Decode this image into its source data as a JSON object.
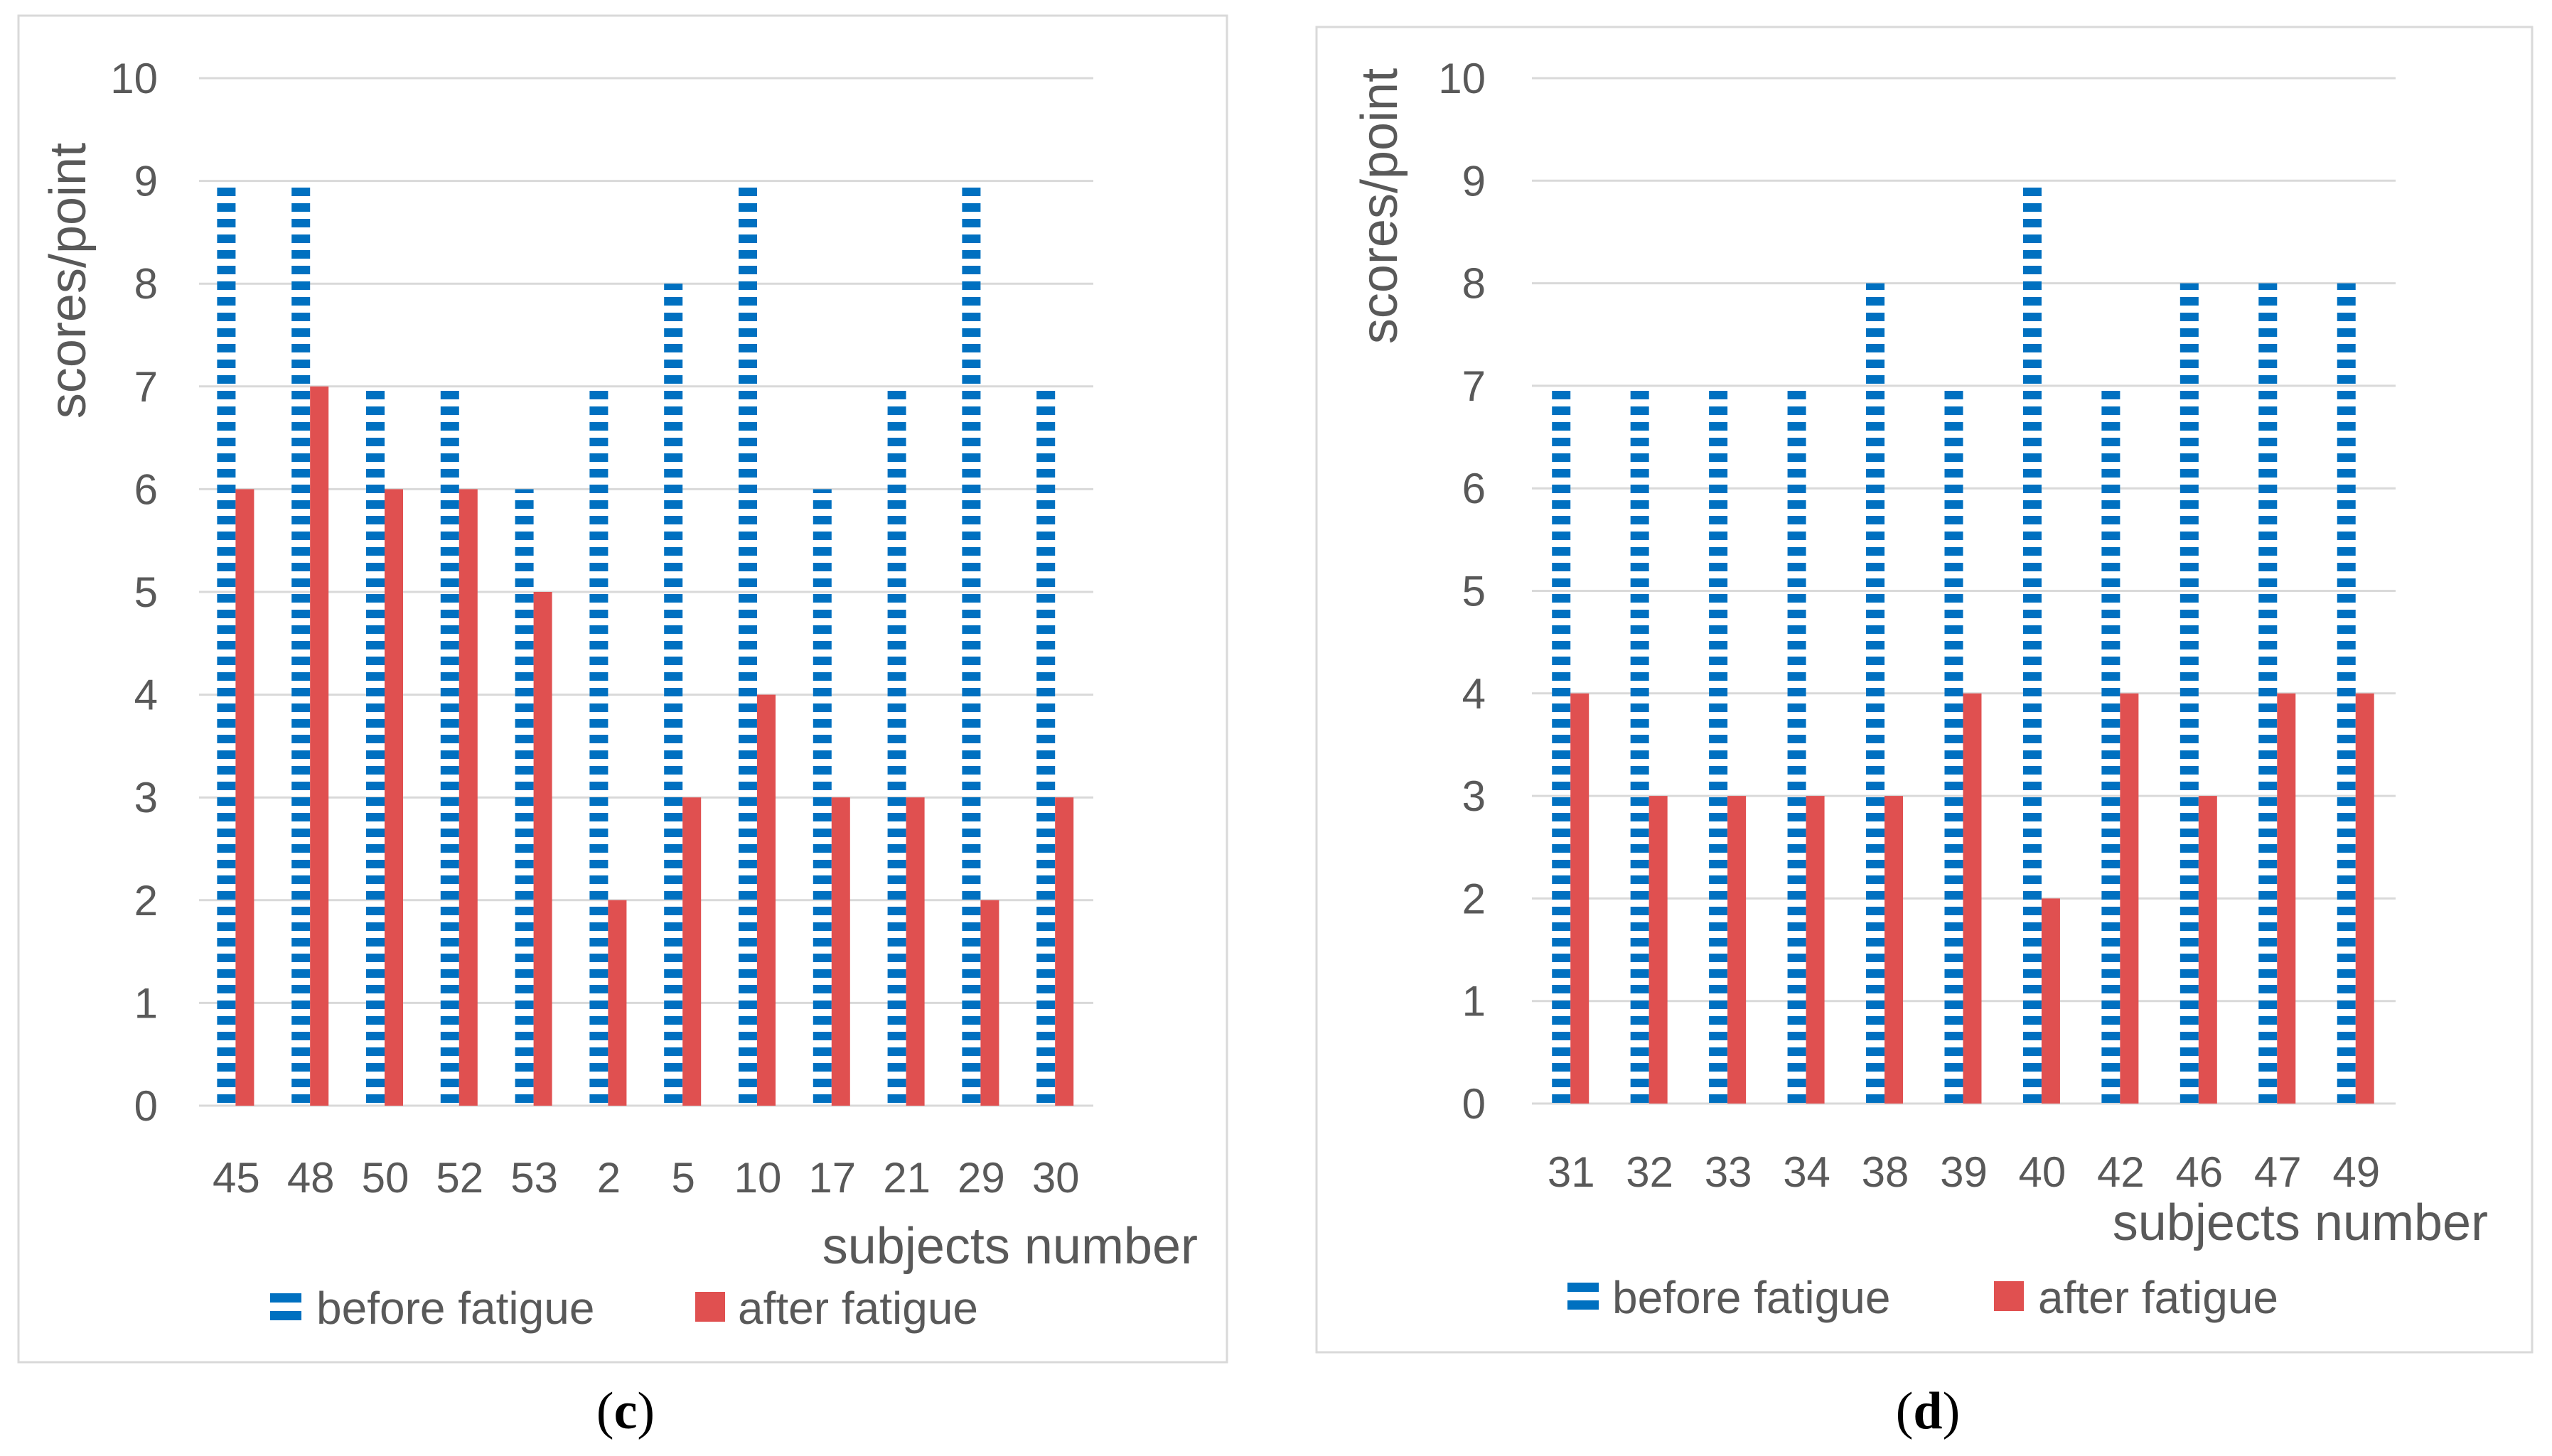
{
  "colors": {
    "before": "#0070c0",
    "after": "#e05050",
    "text": "#595959",
    "grid": "#d9d9d9"
  },
  "chart_data": [
    {
      "type": "bar",
      "panel": "c",
      "caption_open": "(",
      "caption_letter": "c",
      "caption_close": ")",
      "ylabel": "scores/point",
      "xlabel": "subjects number",
      "ylim": [
        0,
        10
      ],
      "yticks": [
        "0",
        "1",
        "2",
        "3",
        "4",
        "5",
        "6",
        "7",
        "8",
        "9",
        "10"
      ],
      "categories": [
        "45",
        "48",
        "50",
        "52",
        "53",
        "2",
        "5",
        "10",
        "17",
        "21",
        "29",
        "30"
      ],
      "legend_position": "bottom",
      "series": [
        {
          "name": "before fatigue",
          "pattern": "dashed",
          "values": [
            9,
            9,
            7,
            7,
            6,
            7,
            8,
            9,
            6,
            7,
            9,
            7
          ]
        },
        {
          "name": "after fatigue",
          "pattern": "solid",
          "values": [
            6,
            7,
            6,
            6,
            5,
            2,
            3,
            4,
            3,
            3,
            2,
            3
          ]
        }
      ]
    },
    {
      "type": "bar",
      "panel": "d",
      "caption_open": "(",
      "caption_letter": "d",
      "caption_close": ")",
      "ylabel": "scores/point",
      "xlabel": "subjects number",
      "ylim": [
        0,
        10
      ],
      "yticks": [
        "0",
        "1",
        "2",
        "3",
        "4",
        "5",
        "6",
        "7",
        "8",
        "9",
        "10"
      ],
      "categories": [
        "31",
        "32",
        "33",
        "34",
        "38",
        "39",
        "40",
        "42",
        "46",
        "47",
        "49"
      ],
      "legend_position": "bottom",
      "series": [
        {
          "name": "before fatigue",
          "pattern": "dashed",
          "values": [
            7,
            7,
            7,
            7,
            8,
            7,
            9,
            7,
            8,
            8,
            8
          ]
        },
        {
          "name": "after fatigue",
          "pattern": "solid",
          "values": [
            4,
            3,
            3,
            3,
            3,
            4,
            2,
            4,
            3,
            4,
            4
          ]
        }
      ]
    }
  ]
}
